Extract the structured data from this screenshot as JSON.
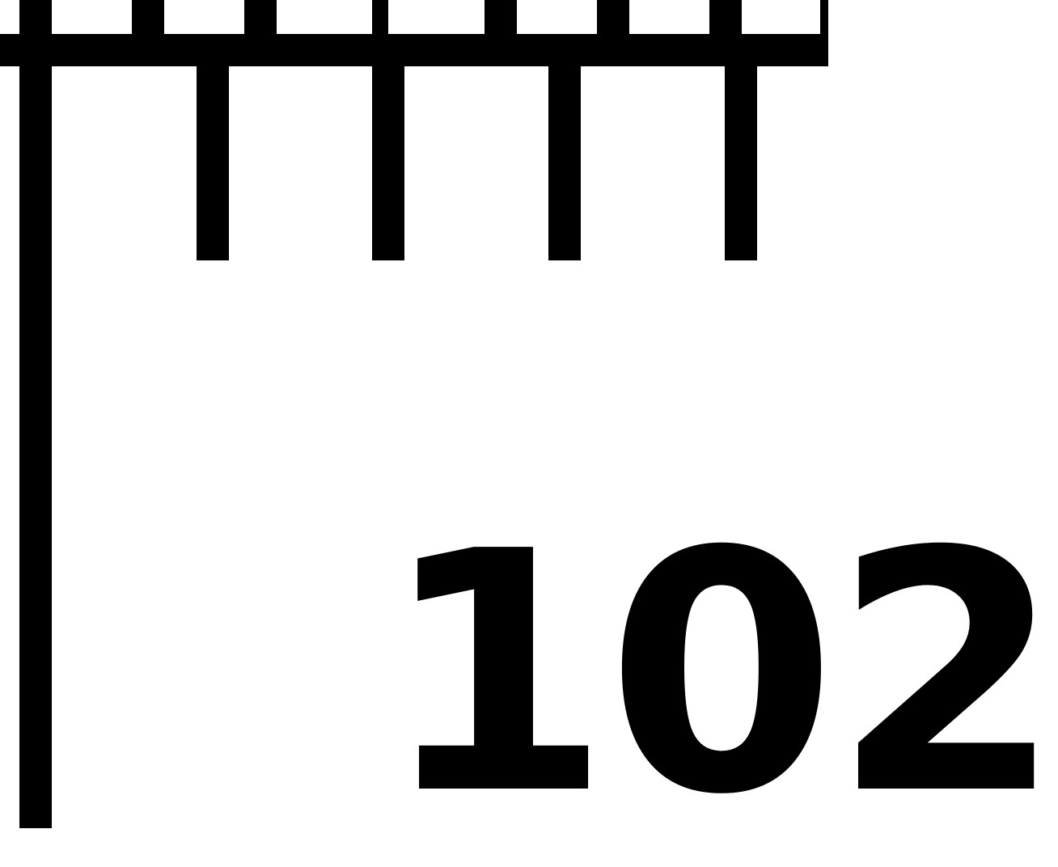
{
  "ruler": {
    "label": "102",
    "color": "#000000",
    "background": "#ffffff"
  }
}
